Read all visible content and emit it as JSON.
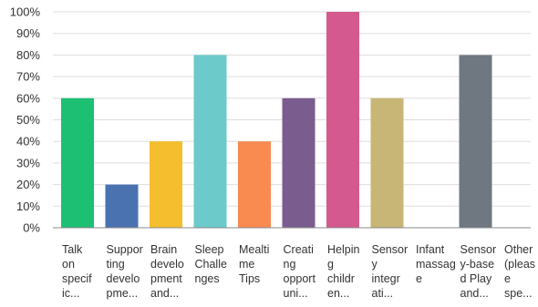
{
  "chart_data": {
    "type": "bar",
    "title": "",
    "xlabel": "",
    "ylabel": "",
    "ylim": [
      0,
      100
    ],
    "yticks": [
      "0%",
      "10%",
      "20%",
      "30%",
      "40%",
      "50%",
      "60%",
      "70%",
      "80%",
      "90%",
      "100%"
    ],
    "categories": [
      "Talk on specific...",
      "Supporting developme...",
      "Brain development and...",
      "Sleep Challenges",
      "Mealtime Tips",
      "Creating opportuni...",
      "Helping children...",
      "Sensory integrati...",
      "Infant massage",
      "Sensory-based Play and...",
      "Other (please spe..."
    ],
    "category_lines": [
      [
        "Talk",
        "on",
        "specif",
        "ic..."
      ],
      [
        "Suppor",
        "ting",
        "develo",
        "pme..."
      ],
      [
        "Brain",
        "develo",
        "pment",
        "and..."
      ],
      [
        "Sleep",
        "Challe",
        "nges"
      ],
      [
        "Mealti",
        "me",
        "Tips"
      ],
      [
        "Creati",
        "ng",
        "opport",
        "uni..."
      ],
      [
        "Helpin",
        "g",
        "childr",
        "en..."
      ],
      [
        "Sensor",
        "y",
        "integr",
        "ati..."
      ],
      [
        "Infant",
        "massag",
        "e"
      ],
      [
        "Sensor",
        "y-base",
        "d Play",
        "and..."
      ],
      [
        "Other",
        "(pleas",
        "e",
        "spe..."
      ]
    ],
    "values": [
      60,
      20,
      40,
      80,
      40,
      60,
      100,
      60,
      0,
      80,
      0
    ],
    "colors": [
      "#1dbf73",
      "#4a72b0",
      "#f5be2e",
      "#6ccaca",
      "#f98a50",
      "#7a5c8e",
      "#d3598f",
      "#c7b676",
      "#cccccc",
      "#6f7780",
      "#cccccc"
    ],
    "grid": true,
    "legend": "none"
  }
}
